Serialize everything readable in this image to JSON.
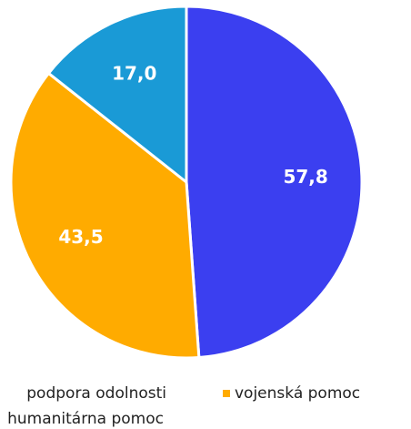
{
  "chart_data": {
    "type": "pie",
    "categories": [
      "podpora odolnosti",
      "vojenská pomoc",
      "humanitárna pomoc"
    ],
    "values": [
      57.8,
      43.5,
      17.0
    ],
    "value_labels": [
      "57,8",
      "43,5",
      "17,0"
    ],
    "colors": [
      "#3b3ff0",
      "#ffab00",
      "#1a9ad6"
    ]
  }
}
